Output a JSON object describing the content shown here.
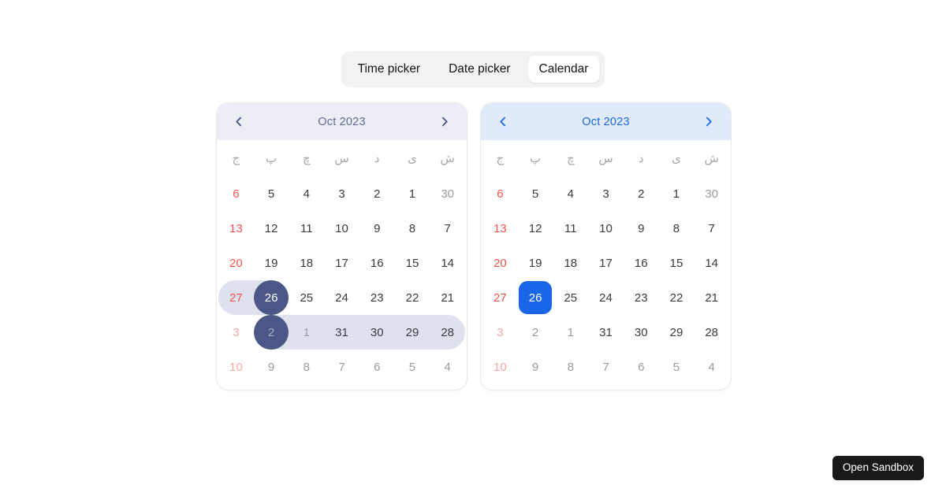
{
  "segmented_control": {
    "items": [
      {
        "label": "Time picker",
        "active": false
      },
      {
        "label": "Date picker",
        "active": false
      },
      {
        "label": "Calendar",
        "active": true
      }
    ]
  },
  "weekdays": [
    "ج",
    "پ",
    "چ",
    "س",
    "د",
    "ی",
    "ش"
  ],
  "calendars": [
    {
      "id": "range-calendar",
      "title": "Oct 2023",
      "theme": {
        "header_bg": "#ECEDF5",
        "title_color": "#5F6B9A",
        "chevron_color": "#4A5585",
        "selected_bg": "#4C5787",
        "selected_shape": "circle",
        "range_bg": "#DFE1EE"
      },
      "rows": [
        {
          "cells": [
            {
              "d": "6",
              "s": "friday"
            },
            {
              "d": "5",
              "s": "normal"
            },
            {
              "d": "4",
              "s": "normal"
            },
            {
              "d": "3",
              "s": "normal"
            },
            {
              "d": "2",
              "s": "normal"
            },
            {
              "d": "1",
              "s": "normal"
            },
            {
              "d": "30",
              "s": "muted"
            }
          ]
        },
        {
          "cells": [
            {
              "d": "13",
              "s": "friday"
            },
            {
              "d": "12",
              "s": "normal"
            },
            {
              "d": "11",
              "s": "normal"
            },
            {
              "d": "10",
              "s": "normal"
            },
            {
              "d": "9",
              "s": "normal"
            },
            {
              "d": "8",
              "s": "normal"
            },
            {
              "d": "7",
              "s": "normal"
            }
          ]
        },
        {
          "cells": [
            {
              "d": "20",
              "s": "friday"
            },
            {
              "d": "19",
              "s": "normal"
            },
            {
              "d": "18",
              "s": "normal"
            },
            {
              "d": "17",
              "s": "normal"
            },
            {
              "d": "16",
              "s": "normal"
            },
            {
              "d": "15",
              "s": "normal"
            },
            {
              "d": "14",
              "s": "normal"
            }
          ]
        },
        {
          "range": {
            "from": 0,
            "to": 1
          },
          "cells": [
            {
              "d": "27",
              "s": "friday"
            },
            {
              "d": "26",
              "s": "selected"
            },
            {
              "d": "25",
              "s": "normal"
            },
            {
              "d": "24",
              "s": "normal"
            },
            {
              "d": "23",
              "s": "normal"
            },
            {
              "d": "22",
              "s": "normal"
            },
            {
              "d": "21",
              "s": "normal"
            }
          ]
        },
        {
          "range": {
            "from": 1,
            "to": 6
          },
          "cells": [
            {
              "d": "3",
              "s": "muted-friday"
            },
            {
              "d": "2",
              "s": "selected-muted"
            },
            {
              "d": "1",
              "s": "muted"
            },
            {
              "d": "31",
              "s": "normal"
            },
            {
              "d": "30",
              "s": "normal"
            },
            {
              "d": "29",
              "s": "normal"
            },
            {
              "d": "28",
              "s": "normal"
            }
          ]
        },
        {
          "cells": [
            {
              "d": "10",
              "s": "muted-friday"
            },
            {
              "d": "9",
              "s": "muted"
            },
            {
              "d": "8",
              "s": "muted"
            },
            {
              "d": "7",
              "s": "muted"
            },
            {
              "d": "6",
              "s": "muted"
            },
            {
              "d": "5",
              "s": "muted"
            },
            {
              "d": "4",
              "s": "muted"
            }
          ]
        }
      ]
    },
    {
      "id": "single-calendar",
      "title": "Oct 2023",
      "theme": {
        "header_bg": "#E0EAFB",
        "title_color": "#1A6BE8",
        "chevron_color": "#1A6BE8",
        "selected_bg": "#1A66E8",
        "selected_shape": "rounded-square",
        "range_bg": "transparent"
      },
      "rows": [
        {
          "cells": [
            {
              "d": "6",
              "s": "friday"
            },
            {
              "d": "5",
              "s": "normal"
            },
            {
              "d": "4",
              "s": "normal"
            },
            {
              "d": "3",
              "s": "normal"
            },
            {
              "d": "2",
              "s": "normal"
            },
            {
              "d": "1",
              "s": "normal"
            },
            {
              "d": "30",
              "s": "muted"
            }
          ]
        },
        {
          "cells": [
            {
              "d": "13",
              "s": "friday"
            },
            {
              "d": "12",
              "s": "normal"
            },
            {
              "d": "11",
              "s": "normal"
            },
            {
              "d": "10",
              "s": "normal"
            },
            {
              "d": "9",
              "s": "normal"
            },
            {
              "d": "8",
              "s": "normal"
            },
            {
              "d": "7",
              "s": "normal"
            }
          ]
        },
        {
          "cells": [
            {
              "d": "20",
              "s": "friday"
            },
            {
              "d": "19",
              "s": "normal"
            },
            {
              "d": "18",
              "s": "normal"
            },
            {
              "d": "17",
              "s": "normal"
            },
            {
              "d": "16",
              "s": "normal"
            },
            {
              "d": "15",
              "s": "normal"
            },
            {
              "d": "14",
              "s": "normal"
            }
          ]
        },
        {
          "cells": [
            {
              "d": "27",
              "s": "friday"
            },
            {
              "d": "26",
              "s": "selected"
            },
            {
              "d": "25",
              "s": "normal"
            },
            {
              "d": "24",
              "s": "normal"
            },
            {
              "d": "23",
              "s": "normal"
            },
            {
              "d": "22",
              "s": "normal"
            },
            {
              "d": "21",
              "s": "normal"
            }
          ]
        },
        {
          "cells": [
            {
              "d": "3",
              "s": "muted-friday"
            },
            {
              "d": "2",
              "s": "muted"
            },
            {
              "d": "1",
              "s": "muted"
            },
            {
              "d": "31",
              "s": "normal"
            },
            {
              "d": "30",
              "s": "normal"
            },
            {
              "d": "29",
              "s": "normal"
            },
            {
              "d": "28",
              "s": "normal"
            }
          ]
        },
        {
          "cells": [
            {
              "d": "10",
              "s": "muted-friday"
            },
            {
              "d": "9",
              "s": "muted"
            },
            {
              "d": "8",
              "s": "muted"
            },
            {
              "d": "7",
              "s": "muted"
            },
            {
              "d": "6",
              "s": "muted"
            },
            {
              "d": "5",
              "s": "muted"
            },
            {
              "d": "4",
              "s": "muted"
            }
          ]
        }
      ]
    }
  ],
  "open_sandbox": {
    "label": "Open Sandbox"
  }
}
